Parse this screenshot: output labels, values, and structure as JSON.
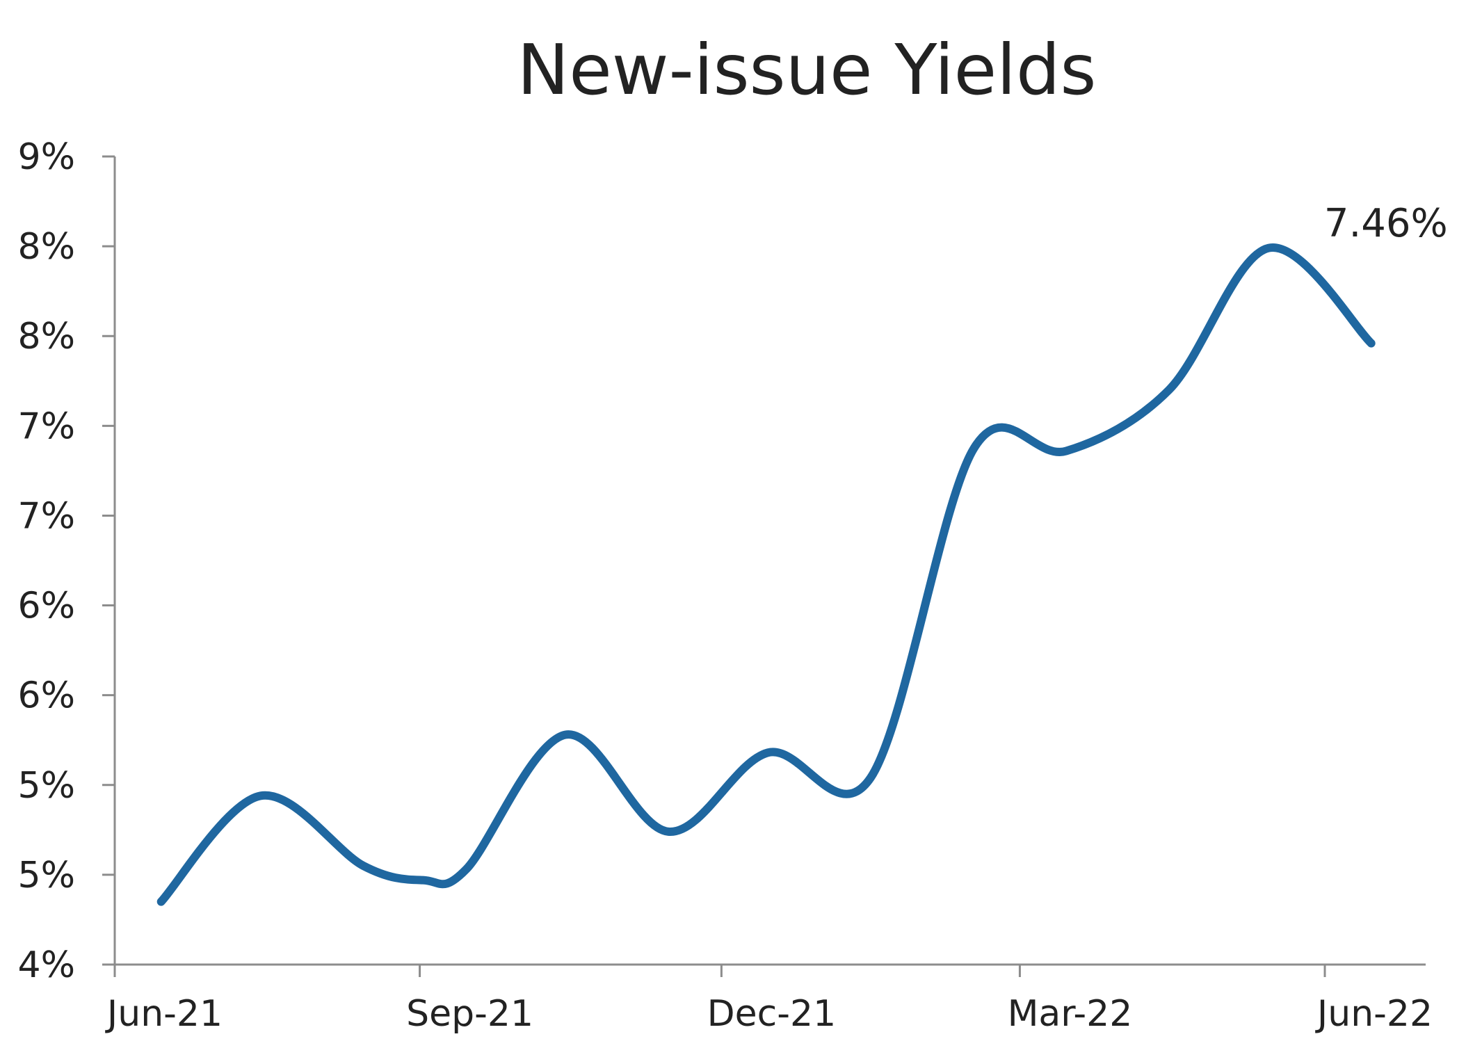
{
  "chart_data": {
    "type": "line",
    "title": "New-issue Yields",
    "xlabel": "",
    "ylabel": "",
    "x_tick_labels": [
      "Jun-21",
      "Sep-21",
      "Dec-21",
      "Mar-22",
      "Jun-22"
    ],
    "y_tick_labels": [
      "4%",
      "5%",
      "5%",
      "6%",
      "6%",
      "7%",
      "7%",
      "8%",
      "8%",
      "9%"
    ],
    "ylim": [
      4.0,
      8.5
    ],
    "y_tick_values": [
      4.0,
      4.5,
      5.0,
      5.5,
      6.0,
      6.5,
      7.0,
      7.5,
      8.0,
      8.5
    ],
    "x": [
      "2021-06-15",
      "2021-07-15",
      "2021-08-15",
      "2021-09-02",
      "2021-09-15",
      "2021-10-15",
      "2021-11-15",
      "2021-12-15",
      "2022-01-15",
      "2022-02-15",
      "2022-03-15",
      "2022-04-15",
      "2022-05-15",
      "2022-06-15"
    ],
    "series": [
      {
        "values": [
          4.35,
          4.94,
          4.55,
          4.47,
          4.53,
          5.28,
          4.74,
          5.18,
          5.04,
          6.87,
          6.86,
          7.2,
          7.99,
          7.46
        ]
      }
    ],
    "annotations": [
      {
        "text": "7.46%",
        "x": "2022-06-15",
        "y": 7.46
      }
    ],
    "grid": false,
    "colors": {
      "series": "#1f67a0",
      "axis": "#8c8c8c",
      "text": "#222222"
    }
  }
}
